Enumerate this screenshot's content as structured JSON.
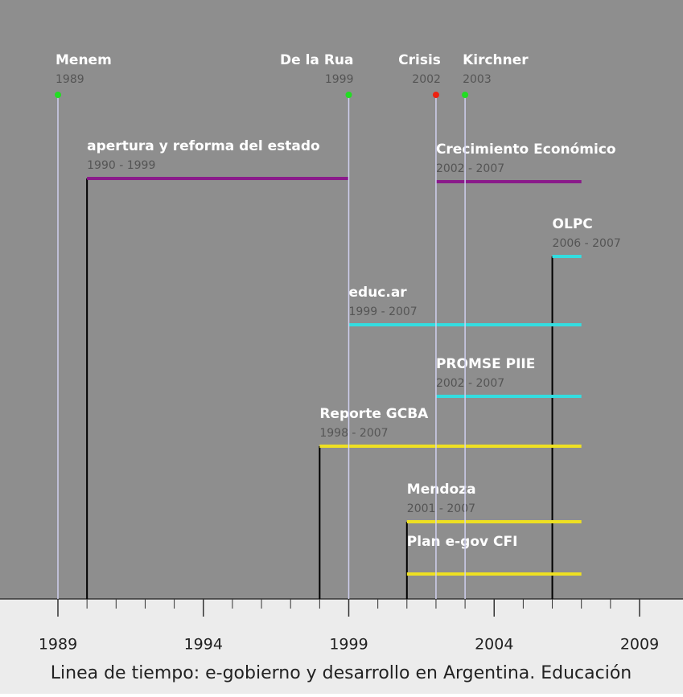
{
  "chart_data": {
    "type": "timeline",
    "title": "Linea de tiempo: e-gobierno y desarrollo en Argentina. Educación",
    "xlim": [
      1989,
      2009
    ],
    "xticks": [
      1989,
      1994,
      1999,
      2004,
      2009
    ],
    "minor_xticks": [
      1990,
      1991,
      1992,
      1993,
      1995,
      1996,
      1997,
      1998,
      2000,
      2001,
      2002,
      2003,
      2005,
      2006,
      2007,
      2008
    ],
    "events": [
      {
        "name": "Menem",
        "year": 1989,
        "color": "#22dd22"
      },
      {
        "name": "De la Rua",
        "year": 1999,
        "color": "#22dd22"
      },
      {
        "name": "Crisis",
        "year": 2002,
        "color": "#ee2211"
      },
      {
        "name": "Kirchner",
        "year": 2003,
        "color": "#22dd22"
      }
    ],
    "spans": [
      {
        "name": "apertura y reforma del estado",
        "range_label": "1990 - 1999",
        "start": 1990,
        "end": 1999,
        "color": "#8a1a8a"
      },
      {
        "name": "Crecimiento Económico",
        "range_label": "2002 - 2007",
        "start": 2002,
        "end": 2007,
        "color": "#8a1a8a"
      },
      {
        "name": "OLPC",
        "range_label": "2006 - 2007",
        "start": 2006,
        "end": 2007,
        "color": "#33dde0"
      },
      {
        "name": "educ.ar",
        "range_label": "1999 - 2007",
        "start": 1999,
        "end": 2007,
        "color": "#33dde0"
      },
      {
        "name": "PROMSE PIIE",
        "range_label": "2002 - 2007",
        "start": 2002,
        "end": 2007,
        "color": "#33dde0"
      },
      {
        "name": "Reporte GCBA",
        "range_label": "1998 - 2007",
        "start": 1998,
        "end": 2007,
        "color": "#eee022"
      },
      {
        "name": "Mendoza",
        "range_label": "2001 - 2007",
        "start": 2001,
        "end": 2007,
        "color": "#eee022"
      },
      {
        "name": "Plan e-gov CFI",
        "start": 2001,
        "end": 2007,
        "color": "#eee022"
      }
    ]
  }
}
